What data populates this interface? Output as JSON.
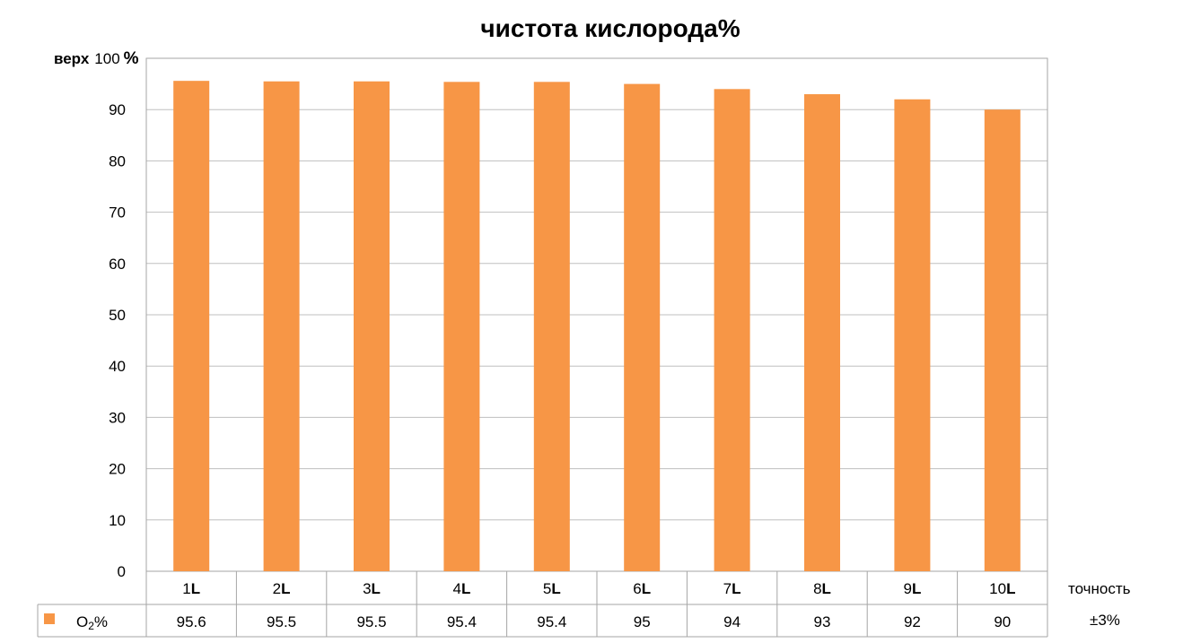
{
  "chart_data": {
    "type": "bar",
    "title": "чистота кислорода%",
    "ylabel_prefix": "верх",
    "ylabel_unit": "%",
    "ylim": [
      0,
      100
    ],
    "yticks": [
      0,
      10,
      20,
      30,
      40,
      50,
      60,
      70,
      80,
      90,
      100
    ],
    "grid": true,
    "categories": [
      {
        "num": "1",
        "unit": "L"
      },
      {
        "num": "2",
        "unit": "L"
      },
      {
        "num": "3",
        "unit": "L"
      },
      {
        "num": "4",
        "unit": "L"
      },
      {
        "num": "5",
        "unit": "L"
      },
      {
        "num": "6",
        "unit": "L"
      },
      {
        "num": "7",
        "unit": "L"
      },
      {
        "num": "8",
        "unit": "L"
      },
      {
        "num": "9",
        "unit": "L"
      },
      {
        "num": "10",
        "unit": "L"
      }
    ],
    "series": [
      {
        "name_main": "O",
        "name_sub": "2",
        "name_suffix": "%",
        "color": "#f79646",
        "values": [
          95.6,
          95.5,
          95.5,
          95.4,
          95.4,
          95,
          94,
          93,
          92,
          90
        ]
      }
    ],
    "data_table": {
      "values_text": [
        "95.6",
        "95.5",
        "95.5",
        "95.4",
        "95.4",
        "95",
        "94",
        "93",
        "92",
        "90"
      ],
      "header_side_label": "точность",
      "row_side_label": "±3%"
    },
    "gridline_color": "#bfbfbf",
    "border_color": "#a6a6a6"
  }
}
